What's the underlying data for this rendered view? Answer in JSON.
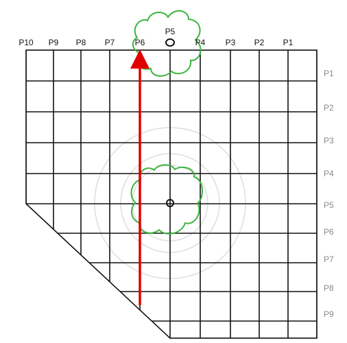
{
  "top_labels": [
    "P10",
    "P9",
    "P8",
    "P7",
    "P6",
    "P5",
    "P4",
    "P3",
    "P2",
    "P1"
  ],
  "right_labels": [
    "P1",
    "P2",
    "P3",
    "P4",
    "P5",
    "P6",
    "P7",
    "P8",
    "P9"
  ]
}
